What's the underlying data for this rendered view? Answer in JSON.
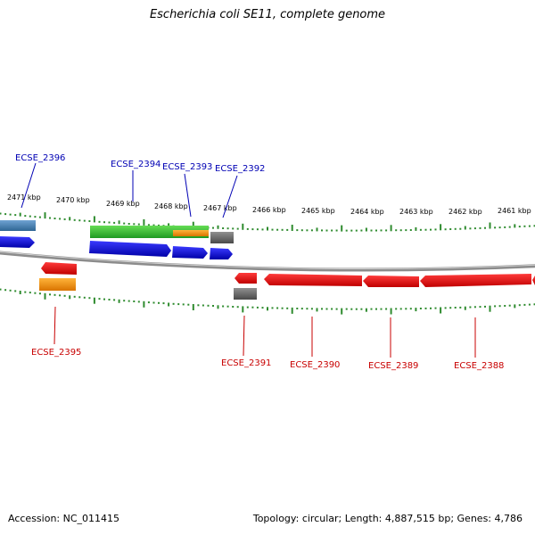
{
  "title": "Escherichia coli SE11, complete genome",
  "footer": {
    "accession": "Accession: NC_011415",
    "summary": "Topology: circular; Length: 4,887,515 bp; Genes: 4,786"
  },
  "colors": {
    "backbone": "#8c8c8c",
    "tick": "#2e8b2e",
    "forward_label": "#0000b4",
    "reverse_label": "#c80000",
    "blue": "#0b0bd6",
    "green": "#3cc43c",
    "orange": "#f0900a",
    "gray": "#6e6e6e",
    "steelblue": "#4682b4",
    "red": "#ee1010"
  },
  "kbp_labels": [
    "2471 kbp",
    "2470 kbp",
    "2469 kbp",
    "2468 kbp",
    "2467 kbp",
    "2466 kbp",
    "2465 kbp",
    "2464 kbp",
    "2463 kbp",
    "2462 kbp",
    "2461 kbp"
  ],
  "gene_labels": {
    "ECSE_2396": "ECSE_2396",
    "ECSE_2394": "ECSE_2394",
    "ECSE_2393": "ECSE_2393",
    "ECSE_2392": "ECSE_2392",
    "ECSE_2395": "ECSE_2395",
    "ECSE_2391": "ECSE_2391",
    "ECSE_2390": "ECSE_2390",
    "ECSE_2389": "ECSE_2389",
    "ECSE_2388": "ECSE_2388"
  }
}
